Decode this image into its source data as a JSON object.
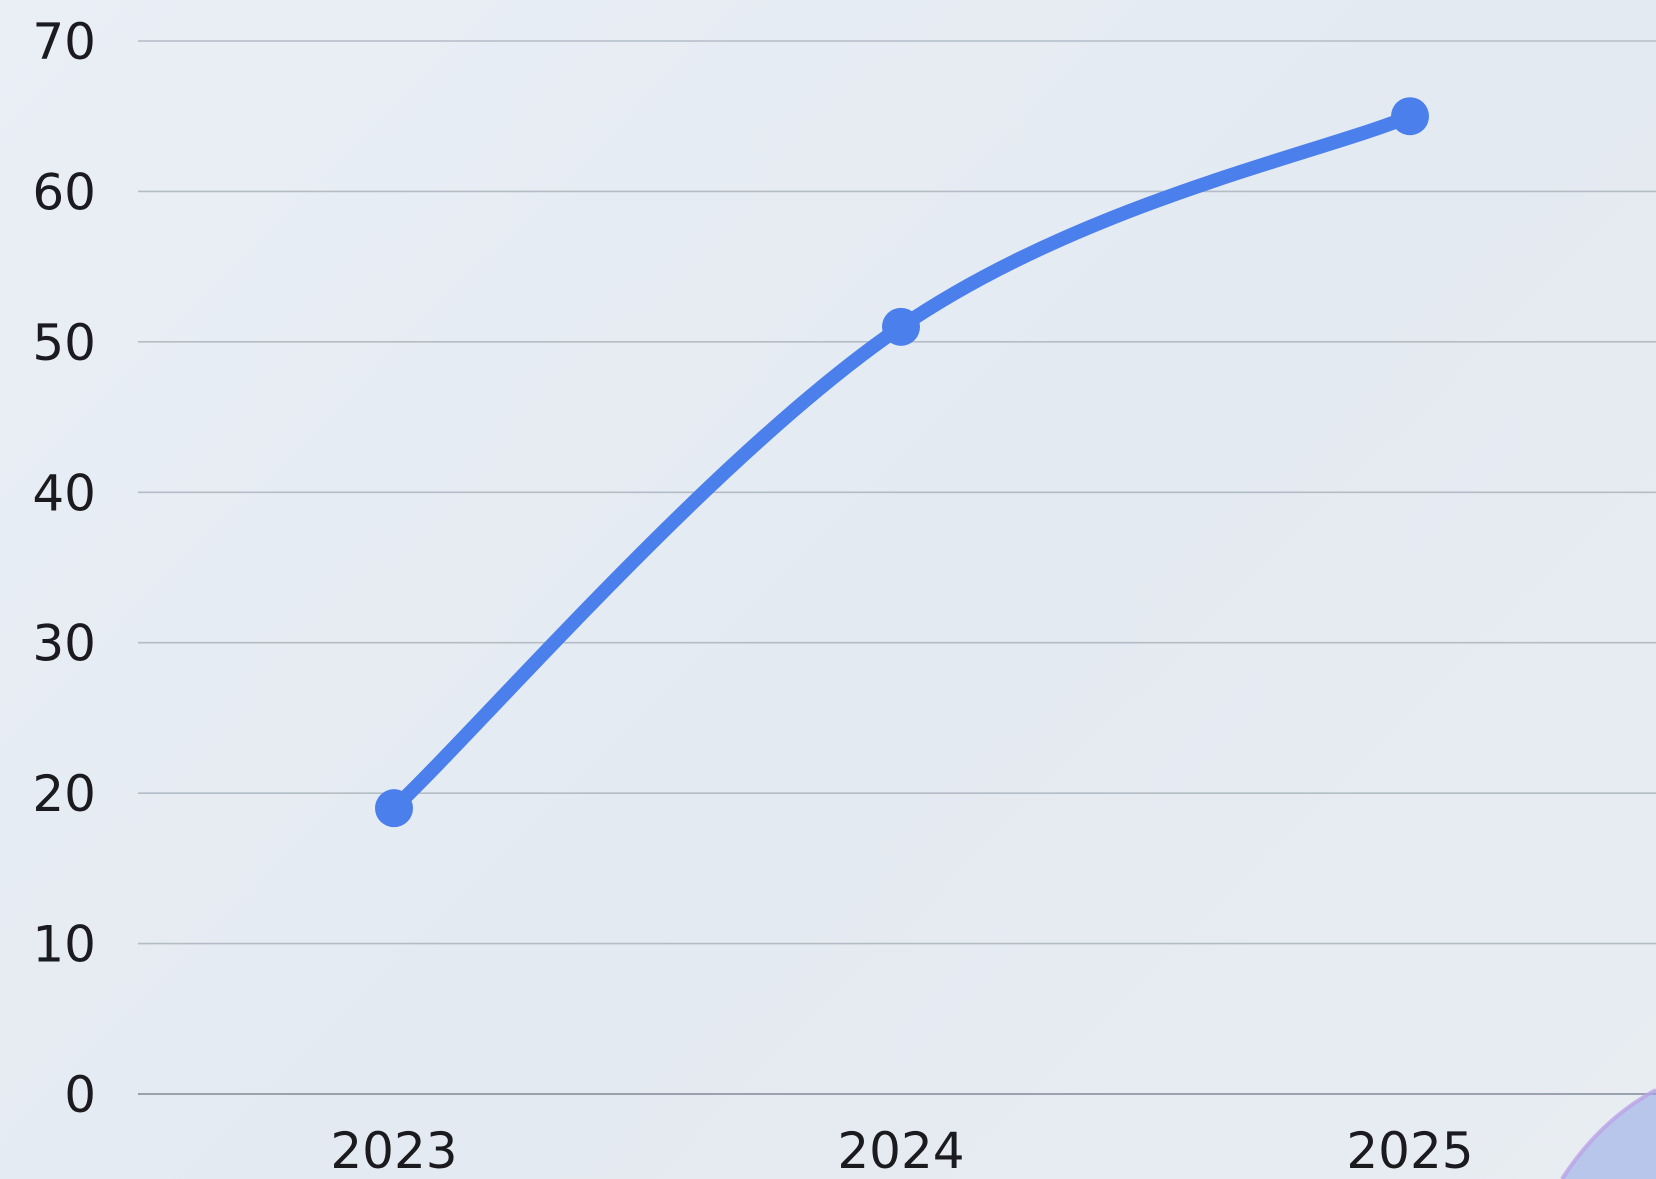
{
  "chart_data": {
    "type": "line",
    "categories": [
      "2023",
      "2024",
      "2025"
    ],
    "series": [
      {
        "values": [
          19,
          51,
          65
        ]
      }
    ],
    "yticks": [
      "0",
      "10",
      "20",
      "30",
      "40",
      "50",
      "60",
      "70"
    ],
    "ylim": [
      0,
      70
    ],
    "grid": true,
    "line_color": "#4a7fec",
    "title": "",
    "xlabel": "",
    "ylabel": ""
  }
}
